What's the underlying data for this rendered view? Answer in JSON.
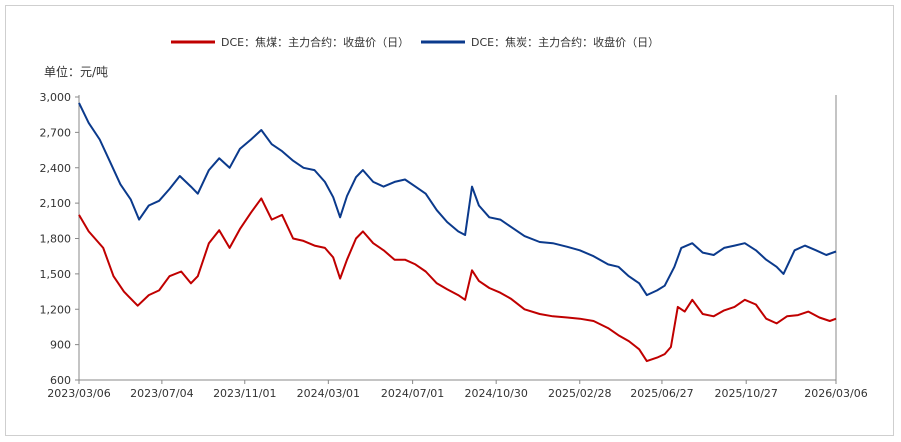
{
  "chart_data": {
    "type": "line",
    "unit_label": "单位：元/吨",
    "x": [
      "2023/03/06",
      "2023/07/04",
      "2023/11/01",
      "2024/03/01",
      "2024/07/01",
      "2024/10/30",
      "2025/02/28",
      "2025/06/27",
      "2025/10/27",
      "2026/03/06"
    ],
    "x_tick_labels": [
      "2023/03/06",
      "2023/07/04",
      "2023/11/01",
      "2024/03/01",
      "2024/07/01",
      "2024/10/30",
      "2025/02/28",
      "2025/06/27",
      "2025/10/27",
      "2026/03/06"
    ],
    "ylim": [
      600,
      3000
    ],
    "y_ticks": [
      600,
      900,
      1200,
      1500,
      1800,
      2100,
      2400,
      2700,
      3000
    ],
    "y_tick_labels": [
      "600",
      "900",
      "1,200",
      "1,500",
      "1,800",
      "2,100",
      "2,400",
      "2,700",
      "3,000"
    ],
    "legend_position": "top",
    "series": [
      {
        "name": "DCE：焦煤：主力合约：收盘价（日）",
        "color": "#c00000",
        "points": [
          [
            "2023/03/06",
            2000
          ],
          [
            "2023/03/20",
            1860
          ],
          [
            "2023/04/10",
            1720
          ],
          [
            "2023/04/25",
            1480
          ],
          [
            "2023/05/10",
            1350
          ],
          [
            "2023/05/30",
            1230
          ],
          [
            "2023/06/15",
            1320
          ],
          [
            "2023/06/30",
            1360
          ],
          [
            "2023/07/15",
            1480
          ],
          [
            "2023/08/01",
            1520
          ],
          [
            "2023/08/15",
            1420
          ],
          [
            "2023/08/25",
            1480
          ],
          [
            "2023/09/10",
            1760
          ],
          [
            "2023/09/25",
            1870
          ],
          [
            "2023/10/10",
            1720
          ],
          [
            "2023/10/25",
            1880
          ],
          [
            "2023/11/10",
            2020
          ],
          [
            "2023/11/25",
            2140
          ],
          [
            "2023/12/10",
            1960
          ],
          [
            "2023/12/25",
            2000
          ],
          [
            "2024/01/10",
            1800
          ],
          [
            "2024/01/25",
            1780
          ],
          [
            "2024/02/10",
            1740
          ],
          [
            "2024/02/25",
            1720
          ],
          [
            "2024/03/08",
            1640
          ],
          [
            "2024/03/18",
            1460
          ],
          [
            "2024/03/28",
            1620
          ],
          [
            "2024/04/10",
            1800
          ],
          [
            "2024/04/20",
            1860
          ],
          [
            "2024/05/05",
            1760
          ],
          [
            "2024/05/20",
            1700
          ],
          [
            "2024/06/05",
            1620
          ],
          [
            "2024/06/20",
            1620
          ],
          [
            "2024/07/05",
            1580
          ],
          [
            "2024/07/20",
            1520
          ],
          [
            "2024/08/05",
            1420
          ],
          [
            "2024/08/20",
            1370
          ],
          [
            "2024/09/05",
            1320
          ],
          [
            "2024/09/15",
            1280
          ],
          [
            "2024/09/25",
            1530
          ],
          [
            "2024/10/05",
            1440
          ],
          [
            "2024/10/20",
            1380
          ],
          [
            "2024/11/05",
            1340
          ],
          [
            "2024/11/20",
            1290
          ],
          [
            "2024/12/10",
            1200
          ],
          [
            "2025/01/01",
            1160
          ],
          [
            "2025/01/20",
            1140
          ],
          [
            "2025/02/10",
            1130
          ],
          [
            "2025/02/28",
            1120
          ],
          [
            "2025/03/20",
            1100
          ],
          [
            "2025/04/10",
            1040
          ],
          [
            "2025/04/25",
            980
          ],
          [
            "2025/05/10",
            930
          ],
          [
            "2025/05/25",
            860
          ],
          [
            "2025/06/05",
            760
          ],
          [
            "2025/06/20",
            790
          ],
          [
            "2025/07/01",
            820
          ],
          [
            "2025/07/10",
            880
          ],
          [
            "2025/07/20",
            1220
          ],
          [
            "2025/07/30",
            1180
          ],
          [
            "2025/08/10",
            1280
          ],
          [
            "2025/08/25",
            1160
          ],
          [
            "2025/09/10",
            1140
          ],
          [
            "2025/09/25",
            1190
          ],
          [
            "2025/10/10",
            1220
          ],
          [
            "2025/10/25",
            1280
          ],
          [
            "2025/11/10",
            1240
          ],
          [
            "2025/11/25",
            1120
          ],
          [
            "2025/12/10",
            1080
          ],
          [
            "2025/12/25",
            1140
          ],
          [
            "2026/01/10",
            1150
          ],
          [
            "2026/01/25",
            1180
          ],
          [
            "2026/02/10",
            1130
          ],
          [
            "2026/02/25",
            1100
          ],
          [
            "2026/03/06",
            1120
          ]
        ]
      },
      {
        "name": "DCE：焦炭：主力合约：收盘价（日）",
        "color": "#0b3a8c",
        "points": [
          [
            "2023/03/06",
            2950
          ],
          [
            "2023/03/20",
            2780
          ],
          [
            "2023/04/05",
            2640
          ],
          [
            "2023/04/20",
            2450
          ],
          [
            "2023/05/05",
            2260
          ],
          [
            "2023/05/20",
            2130
          ],
          [
            "2023/06/01",
            1960
          ],
          [
            "2023/06/15",
            2080
          ],
          [
            "2023/06/30",
            2120
          ],
          [
            "2023/07/15",
            2220
          ],
          [
            "2023/07/30",
            2330
          ],
          [
            "2023/08/15",
            2240
          ],
          [
            "2023/08/25",
            2180
          ],
          [
            "2023/09/10",
            2380
          ],
          [
            "2023/09/25",
            2480
          ],
          [
            "2023/10/10",
            2400
          ],
          [
            "2023/10/25",
            2560
          ],
          [
            "2023/11/10",
            2640
          ],
          [
            "2023/11/25",
            2720
          ],
          [
            "2023/12/10",
            2600
          ],
          [
            "2023/12/25",
            2540
          ],
          [
            "2024/01/10",
            2460
          ],
          [
            "2024/01/25",
            2400
          ],
          [
            "2024/02/10",
            2380
          ],
          [
            "2024/02/25",
            2280
          ],
          [
            "2024/03/08",
            2150
          ],
          [
            "2024/03/18",
            1980
          ],
          [
            "2024/03/28",
            2160
          ],
          [
            "2024/04/10",
            2320
          ],
          [
            "2024/04/20",
            2380
          ],
          [
            "2024/05/05",
            2280
          ],
          [
            "2024/05/20",
            2240
          ],
          [
            "2024/06/05",
            2280
          ],
          [
            "2024/06/20",
            2300
          ],
          [
            "2024/07/05",
            2240
          ],
          [
            "2024/07/20",
            2180
          ],
          [
            "2024/08/05",
            2040
          ],
          [
            "2024/08/20",
            1940
          ],
          [
            "2024/09/05",
            1860
          ],
          [
            "2024/09/15",
            1830
          ],
          [
            "2024/09/25",
            2240
          ],
          [
            "2024/10/05",
            2080
          ],
          [
            "2024/10/20",
            1980
          ],
          [
            "2024/11/05",
            1960
          ],
          [
            "2024/11/20",
            1900
          ],
          [
            "2024/12/10",
            1820
          ],
          [
            "2025/01/01",
            1770
          ],
          [
            "2025/01/20",
            1760
          ],
          [
            "2025/02/10",
            1730
          ],
          [
            "2025/02/28",
            1700
          ],
          [
            "2025/03/20",
            1650
          ],
          [
            "2025/04/10",
            1580
          ],
          [
            "2025/04/25",
            1560
          ],
          [
            "2025/05/10",
            1480
          ],
          [
            "2025/05/25",
            1420
          ],
          [
            "2025/06/05",
            1320
          ],
          [
            "2025/06/20",
            1360
          ],
          [
            "2025/07/01",
            1400
          ],
          [
            "2025/07/15",
            1560
          ],
          [
            "2025/07/25",
            1720
          ],
          [
            "2025/08/10",
            1760
          ],
          [
            "2025/08/25",
            1680
          ],
          [
            "2025/09/10",
            1660
          ],
          [
            "2025/09/25",
            1720
          ],
          [
            "2025/10/10",
            1740
          ],
          [
            "2025/10/25",
            1760
          ],
          [
            "2025/11/10",
            1700
          ],
          [
            "2025/11/25",
            1620
          ],
          [
            "2025/12/10",
            1560
          ],
          [
            "2025/12/20",
            1500
          ],
          [
            "2026/01/05",
            1700
          ],
          [
            "2026/01/20",
            1740
          ],
          [
            "2026/02/05",
            1700
          ],
          [
            "2026/02/20",
            1660
          ],
          [
            "2026/03/06",
            1690
          ]
        ]
      }
    ]
  }
}
